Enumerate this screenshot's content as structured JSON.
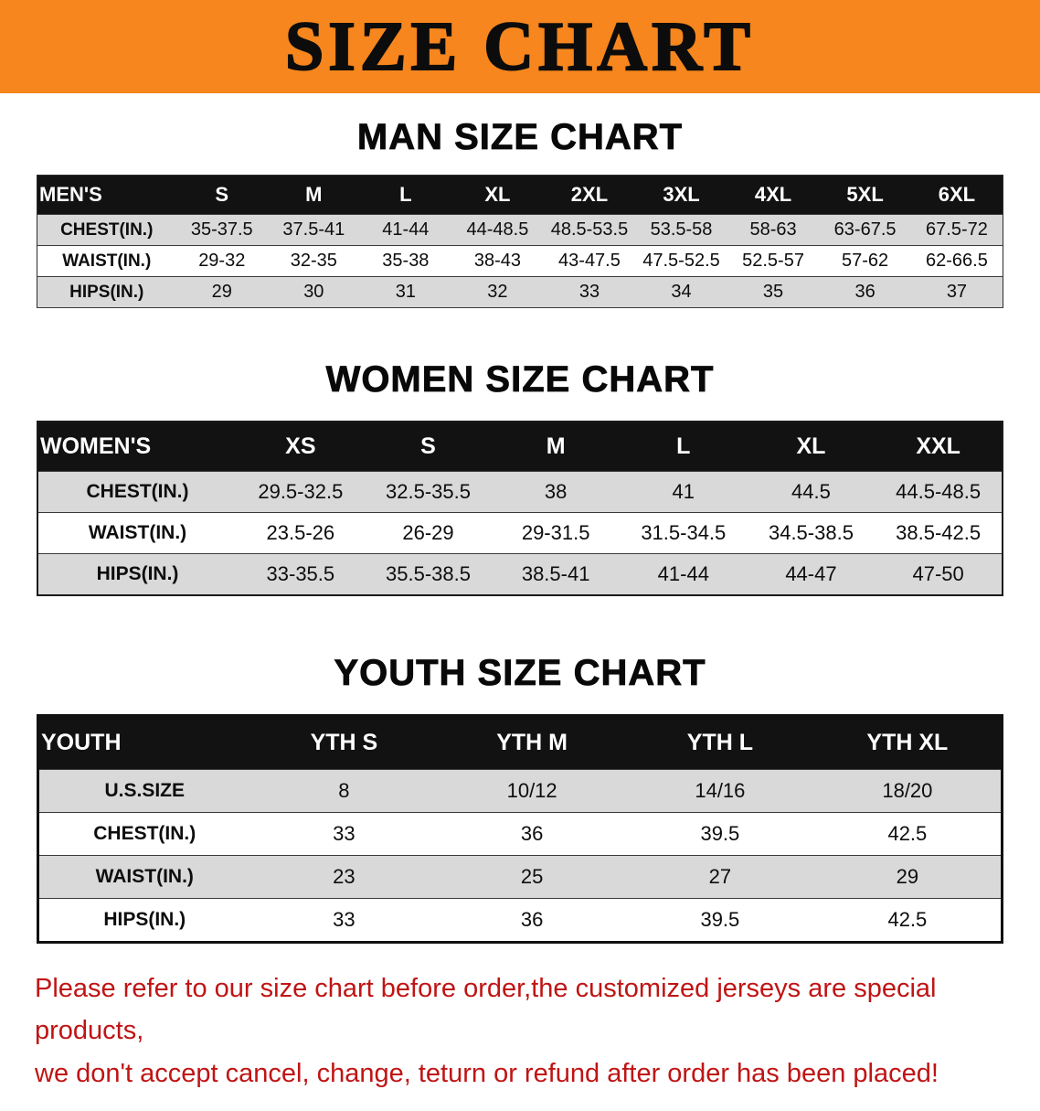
{
  "banner": {
    "title": "SIZE CHART",
    "bg_color": "#F6861D",
    "text_color": "#0C0C0C"
  },
  "colors": {
    "table_header_bg": "#121212",
    "table_header_text": "#FFFFFF",
    "row_shade": "#D9D9D9",
    "row_plain": "#FFFFFF",
    "footer_text": "#C01414"
  },
  "sections": [
    {
      "id": "men",
      "heading": "MAN SIZE CHART",
      "table": {
        "header_label": "MEN'S",
        "columns": [
          "S",
          "M",
          "L",
          "XL",
          "2XL",
          "3XL",
          "4XL",
          "5XL",
          "6XL"
        ],
        "rows": [
          {
            "label": "CHEST(IN.)",
            "values": [
              "35-37.5",
              "37.5-41",
              "41-44",
              "44-48.5",
              "48.5-53.5",
              "53.5-58",
              "58-63",
              "63-67.5",
              "67.5-72"
            ]
          },
          {
            "label": "WAIST(IN.)",
            "values": [
              "29-32",
              "32-35",
              "35-38",
              "38-43",
              "43-47.5",
              "47.5-52.5",
              "52.5-57",
              "57-62",
              "62-66.5"
            ]
          },
          {
            "label": "HIPS(IN.)",
            "values": [
              "29",
              "30",
              "31",
              "32",
              "33",
              "34",
              "35",
              "36",
              "37"
            ]
          }
        ]
      }
    },
    {
      "id": "women",
      "heading": "WOMEN SIZE CHART",
      "table": {
        "header_label": "WOMEN'S",
        "columns": [
          "XS",
          "S",
          "M",
          "L",
          "XL",
          "XXL"
        ],
        "rows": [
          {
            "label": "CHEST(IN.)",
            "values": [
              "29.5-32.5",
              "32.5-35.5",
              "38",
              "41",
              "44.5",
              "44.5-48.5"
            ]
          },
          {
            "label": "WAIST(IN.)",
            "values": [
              "23.5-26",
              "26-29",
              "29-31.5",
              "31.5-34.5",
              "34.5-38.5",
              "38.5-42.5"
            ]
          },
          {
            "label": "HIPS(IN.)",
            "values": [
              "33-35.5",
              "35.5-38.5",
              "38.5-41",
              "41-44",
              "44-47",
              "47-50"
            ]
          }
        ]
      }
    },
    {
      "id": "youth",
      "heading": "YOUTH SIZE CHART",
      "table": {
        "header_label": "YOUTH",
        "columns": [
          "YTH S",
          "YTH M",
          "YTH L",
          "YTH XL"
        ],
        "rows": [
          {
            "label": "U.S.SIZE",
            "values": [
              "8",
              "10/12",
              "14/16",
              "18/20"
            ]
          },
          {
            "label": "CHEST(IN.)",
            "values": [
              "33",
              "36",
              "39.5",
              "42.5"
            ]
          },
          {
            "label": "WAIST(IN.)",
            "values": [
              "23",
              "25",
              "27",
              "29"
            ]
          },
          {
            "label": "HIPS(IN.)",
            "values": [
              "33",
              "36",
              "39.5",
              "42.5"
            ]
          }
        ]
      }
    }
  ],
  "footer_note": {
    "line1": "Please refer to our size chart before order,the customized jerseys are special products,",
    "line2": "we don't accept cancel, change, teturn or refund after order has been placed!"
  }
}
